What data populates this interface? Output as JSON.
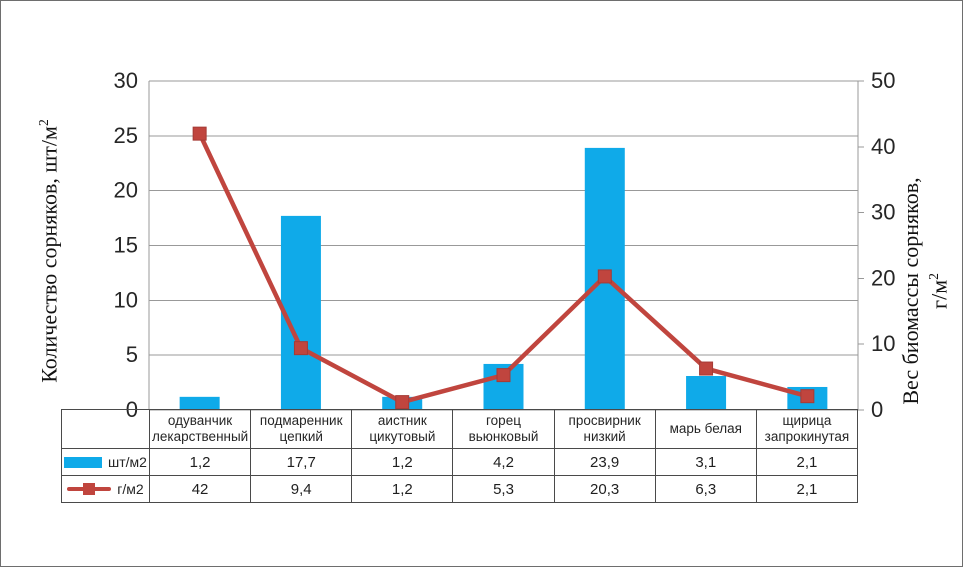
{
  "chart_data": {
    "type": "combo",
    "title": "",
    "categories": [
      "одуванчик лекарственный",
      "подмаренник цепкий",
      "аистник цикутовый",
      "горец вьюнковый",
      "просвирник низкий",
      "марь белая",
      "щирица запрокинутая"
    ],
    "series": [
      {
        "name": "шт/м2",
        "chart_type": "bar",
        "axis": "left",
        "color": "#0FAAE9",
        "values": [
          1.2,
          17.7,
          1.2,
          4.2,
          23.9,
          3.1,
          2.1
        ],
        "display_values": [
          "1,2",
          "17,7",
          "1,2",
          "4,2",
          "23,9",
          "3,1",
          "2,1"
        ]
      },
      {
        "name": "г/м2",
        "chart_type": "line",
        "axis": "right",
        "color": "#C0453E",
        "marker": "square",
        "marker_stroke": "#A53B36",
        "values": [
          42,
          9.4,
          1.2,
          5.3,
          20.3,
          6.3,
          2.1
        ],
        "display_values": [
          "42",
          "9,4",
          "1,2",
          "5,3",
          "20,3",
          "6,3",
          "2,1"
        ]
      }
    ],
    "left_axis": {
      "label": "Количество сорняков, шт/м2",
      "label_base": "Количество сорняков, шт/м",
      "label_sup": "2",
      "min": 0,
      "max": 30,
      "tick_step": 5,
      "ticks": [
        0,
        5,
        10,
        15,
        20,
        25,
        30
      ]
    },
    "right_axis": {
      "label": "Вес биомассы сорняков, г/м2",
      "label_line1": "Вес биомассы сорняков,",
      "label_line2_base": "г/м",
      "label_sup": "2",
      "min": 0,
      "max": 50,
      "tick_step": 10,
      "ticks": [
        0,
        10,
        20,
        30,
        40,
        50
      ]
    },
    "gridlines": "horizontal",
    "legend_position": "table-left",
    "colors": {
      "grid": "#999999",
      "axis": "#999999",
      "table_border": "#4a4a4a",
      "text": "#262626"
    }
  }
}
